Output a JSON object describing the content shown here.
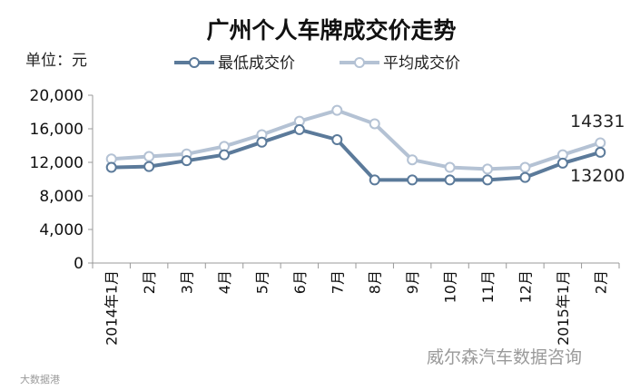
{
  "chart_data": {
    "type": "line",
    "title": "广州个人车牌成交价走势",
    "unit_label": "单位：元",
    "categories": [
      "2014年1月",
      "2月",
      "3月",
      "4月",
      "5月",
      "6月",
      "7月",
      "8月",
      "9月",
      "10月",
      "11月",
      "12月",
      "2015年1月",
      "2月"
    ],
    "series": [
      {
        "name": "最低成交价",
        "color": "#5b7a9a",
        "values": [
          11400,
          11500,
          12200,
          12900,
          14400,
          15900,
          14700,
          9900,
          9900,
          9900,
          9900,
          10200,
          11900,
          13200
        ]
      },
      {
        "name": "平均成交价",
        "color": "#b4c2d4",
        "values": [
          12400,
          12700,
          13000,
          13900,
          15300,
          16900,
          18200,
          16600,
          12300,
          11400,
          11200,
          11400,
          12900,
          14331
        ]
      }
    ],
    "yticks": [
      "20,000",
      "16,000",
      "12,000",
      "8,000",
      "4,000",
      "0"
    ],
    "ylim": [
      0,
      20000
    ],
    "grid": false,
    "legend_position": "top",
    "annotations": [
      {
        "text": "14331",
        "series": 1
      },
      {
        "text": "13200",
        "series": 0
      }
    ]
  },
  "watermark": {
    "main": "威尔森汽车数据咨询",
    "corner": "大数据港"
  }
}
